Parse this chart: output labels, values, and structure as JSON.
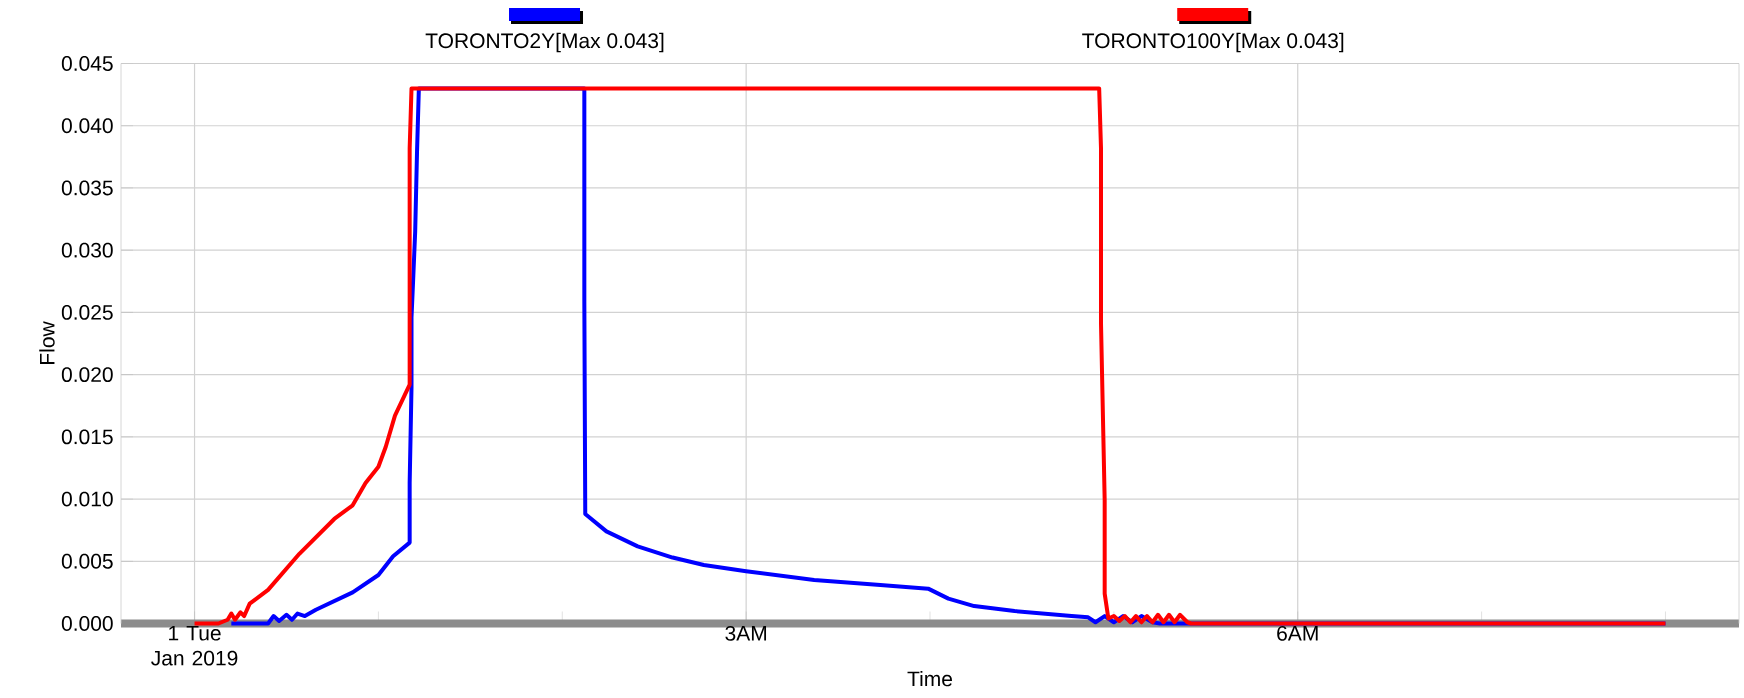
{
  "chart_data": {
    "type": "line",
    "xlabel": "Time",
    "ylabel": "Flow",
    "legend": "top",
    "grid": true,
    "marker": "none",
    "line_style": "solid",
    "xlim": [
      -0.4,
      8.4
    ],
    "ylim": [
      0,
      0.045
    ],
    "xticks": [
      {
        "value": 0,
        "label": "1 Tue Jan 2019"
      },
      {
        "value": 1,
        "label": null
      },
      {
        "value": 2,
        "label": null
      },
      {
        "value": 3,
        "label": "3AM"
      },
      {
        "value": 4,
        "label": null
      },
      {
        "value": 5,
        "label": null
      },
      {
        "value": 6,
        "label": "6AM"
      },
      {
        "value": 7,
        "label": null
      },
      {
        "value": 8,
        "label": null
      }
    ],
    "yticks": [
      {
        "value": 0,
        "label": "0.000"
      },
      {
        "value": 0.005,
        "label": "0.005"
      },
      {
        "value": 0.01,
        "label": "0.010"
      },
      {
        "value": 0.015,
        "label": "0.015"
      },
      {
        "value": 0.02,
        "label": "0.020"
      },
      {
        "value": 0.025,
        "label": "0.025"
      },
      {
        "value": 0.03,
        "label": "0.030"
      },
      {
        "value": 0.035,
        "label": "0.035"
      },
      {
        "value": 0.04,
        "label": "0.040"
      },
      {
        "value": 0.045,
        "label": "0.045"
      }
    ],
    "series": [
      {
        "name": "TORONTO2Y[Max 0.043]",
        "color": "#0000ff",
        "x": [
          0.2,
          0.4,
          0.43,
          0.46,
          0.5,
          0.53,
          0.56,
          0.6,
          0.66,
          0.86,
          1.0,
          1.08,
          1.17,
          1.17,
          1.18,
          1.18,
          1.19,
          1.2,
          1.21,
          1.22,
          2.12,
          2.12,
          2.125,
          2.24,
          2.41,
          2.6,
          2.77,
          3.0,
          3.37,
          3.73,
          3.99,
          4.1,
          4.24,
          4.46,
          4.77,
          4.86,
          4.9,
          4.95,
          5.0,
          5.05,
          5.1,
          5.15,
          5.21,
          5.25,
          8.0
        ],
        "values": [
          0,
          0,
          0.0006,
          0.0002,
          0.0007,
          0.0003,
          0.0008,
          0.0006,
          0.0011,
          0.0025,
          0.0039,
          0.0054,
          0.0065,
          0.0113,
          0.019,
          0.0246,
          0.028,
          0.0315,
          0.0379,
          0.043,
          0.043,
          0.0259,
          0.0088,
          0.0074,
          0.0062,
          0.0053,
          0.0047,
          0.0042,
          0.0035,
          0.0031,
          0.0028,
          0.002,
          0.0014,
          0.001,
          0.0006,
          0.0005,
          0.0001,
          0.0006,
          0.0001,
          0.0006,
          0.0001,
          0.0006,
          0.0001,
          0,
          0
        ]
      },
      {
        "name": "TORONTO100Y[Max 0.043]",
        "color": "#ff0000",
        "x": [
          0,
          0.13,
          0.18,
          0.2,
          0.22,
          0.25,
          0.27,
          0.3,
          0.4,
          0.57,
          0.76,
          0.86,
          0.93,
          1.0,
          1.04,
          1.09,
          1.17,
          1.17,
          1.18,
          4.92,
          4.93,
          4.93,
          4.95,
          4.95,
          4.97,
          5.0,
          5.03,
          5.06,
          5.09,
          5.12,
          5.15,
          5.18,
          5.21,
          5.24,
          5.27,
          5.3,
          5.33,
          5.36,
          5.4,
          5.42,
          8.0
        ],
        "values": [
          0,
          0,
          0.0003,
          0.0008,
          0.0003,
          0.0009,
          0.0006,
          0.0016,
          0.0027,
          0.0056,
          0.0084,
          0.0095,
          0.0113,
          0.0126,
          0.0142,
          0.0167,
          0.0192,
          0.0382,
          0.043,
          0.043,
          0.0382,
          0.0241,
          0.0099,
          0.0024,
          0.0004,
          0.0006,
          0.0002,
          0.0006,
          0.0001,
          0.0006,
          0.0001,
          0.0006,
          0.0001,
          0.0007,
          0.0001,
          0.0007,
          0.0001,
          0.0007,
          0.0001,
          0,
          0
        ]
      }
    ]
  }
}
